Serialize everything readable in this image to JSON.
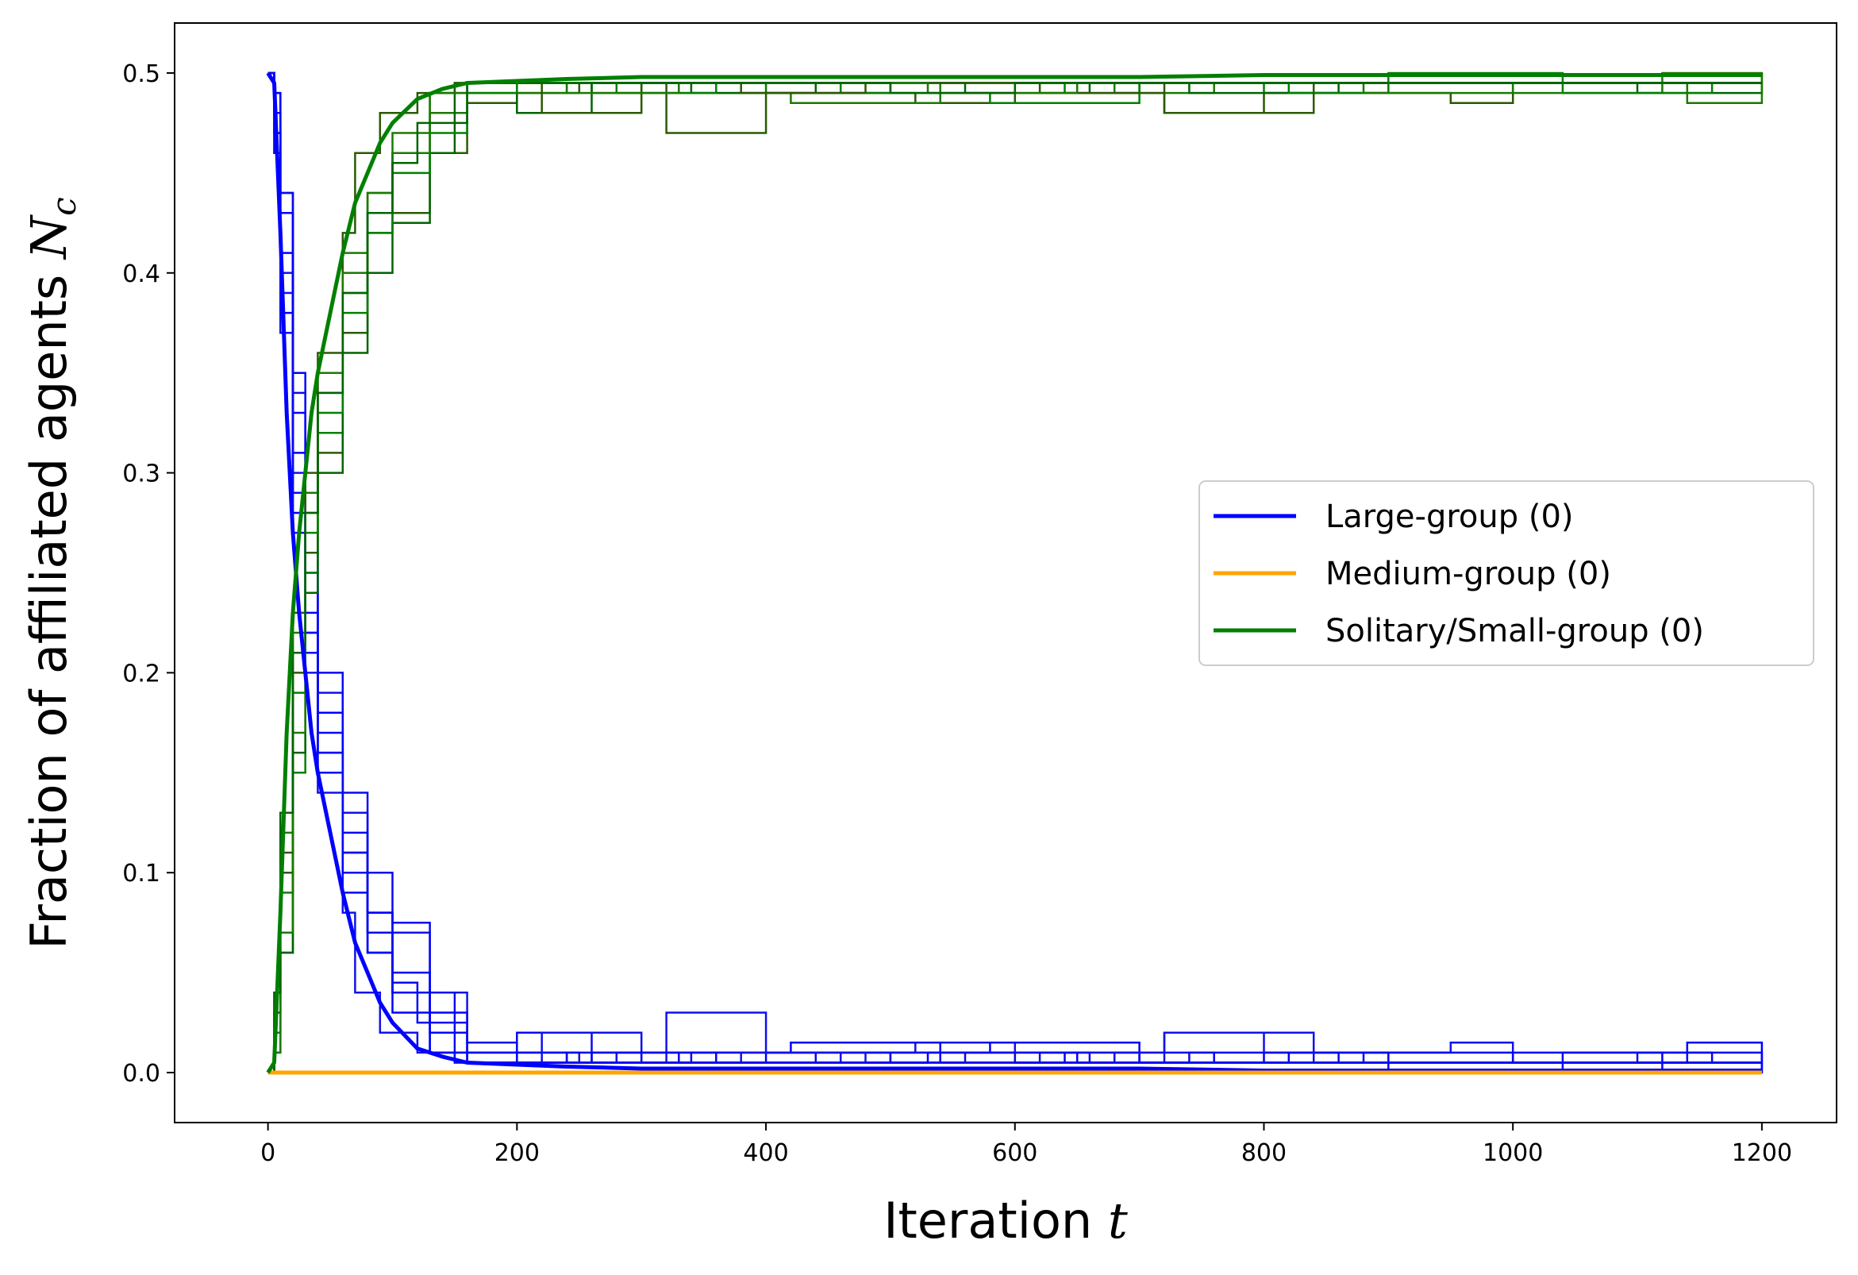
{
  "chart_data": {
    "type": "line",
    "xlabel": {
      "text": "Iteration ",
      "var": "t"
    },
    "ylabel": {
      "text": "Fraction of affiliated agents ",
      "var": "N",
      "sub": "c"
    },
    "xlim": [
      -75,
      1260
    ],
    "ylim": [
      -0.025,
      0.525
    ],
    "xticks": [
      0,
      200,
      400,
      600,
      800,
      1000,
      1200
    ],
    "xtick_labels": [
      "0",
      "200",
      "400",
      "600",
      "800",
      "1000",
      "1200"
    ],
    "yticks": [
      0.0,
      0.1,
      0.2,
      0.3,
      0.4,
      0.5
    ],
    "ytick_labels": [
      "0.0",
      "0.1",
      "0.2",
      "0.3",
      "0.4",
      "0.5"
    ],
    "grid": false,
    "legend": {
      "placement": "center-right",
      "entries": [
        {
          "label": "Large-group (0)",
          "color": "#0000ff"
        },
        {
          "label": "Medium-group (0)",
          "color": "#ffa500"
        },
        {
          "label": "Solitary/Small-group (0)",
          "color": "#008000"
        }
      ]
    },
    "series_groups": [
      {
        "name": "Large-group (0)",
        "color": "#0000ff",
        "mean": {
          "x": [
            0,
            5,
            10,
            15,
            20,
            25,
            30,
            35,
            40,
            50,
            60,
            70,
            80,
            90,
            100,
            120,
            140,
            160,
            200,
            240,
            300,
            400,
            500,
            600,
            700,
            800,
            900,
            1000,
            1100,
            1200
          ],
          "y": [
            0.5,
            0.495,
            0.42,
            0.33,
            0.27,
            0.23,
            0.2,
            0.17,
            0.15,
            0.12,
            0.09,
            0.065,
            0.05,
            0.035,
            0.025,
            0.012,
            0.008,
            0.005,
            0.004,
            0.003,
            0.002,
            0.002,
            0.002,
            0.002,
            0.002,
            0.001,
            0.001,
            0.001,
            0.001,
            0.001
          ]
        },
        "runs": [
          {
            "x": [
              0,
              5,
              10,
              20,
              30,
              40,
              60,
              80,
              100,
              130,
              160,
              200,
              260,
              300,
              400,
              500,
              640,
              700,
              800,
              900,
              1000,
              1200
            ],
            "y": [
              0.5,
              0.48,
              0.44,
              0.35,
              0.25,
              0.18,
              0.11,
              0.06,
              0.04,
              0.01,
              0.005,
              0.005,
              0.01,
              0.005,
              0.01,
              0.005,
              0.01,
              0.005,
              0.01,
              0.005,
              0.005,
              0.005
            ]
          },
          {
            "x": [
              0,
              5,
              10,
              20,
              30,
              40,
              60,
              80,
              100,
              130,
              160,
              200,
              250,
              320,
              400,
              520,
              600,
              720,
              800,
              950,
              1000,
              1200
            ],
            "y": [
              0.5,
              0.47,
              0.4,
              0.3,
              0.24,
              0.19,
              0.13,
              0.08,
              0.07,
              0.04,
              0.015,
              0.01,
              0.005,
              0.03,
              0.01,
              0.015,
              0.005,
              0.02,
              0.01,
              0.015,
              0.005,
              0.0
            ]
          },
          {
            "x": [
              0,
              5,
              10,
              20,
              30,
              40,
              60,
              80,
              100,
              130,
              160,
              200,
              240,
              300,
              420,
              540,
              680,
              760,
              880,
              1000,
              1120,
              1200
            ],
            "y": [
              0.5,
              0.46,
              0.38,
              0.28,
              0.21,
              0.15,
              0.09,
              0.06,
              0.03,
              0.02,
              0.01,
              0.01,
              0.005,
              0.01,
              0.015,
              0.005,
              0.01,
              0.005,
              0.005,
              0.01,
              0.0,
              0.005
            ]
          },
          {
            "x": [
              0,
              5,
              10,
              20,
              30,
              40,
              60,
              80,
              100,
              130,
              150,
              200,
              260,
              340,
              440,
              560,
              660,
              740,
              860,
              960,
              1100,
              1200
            ],
            "y": [
              0.5,
              0.49,
              0.44,
              0.34,
              0.26,
              0.2,
              0.14,
              0.1,
              0.075,
              0.04,
              0.005,
              0.02,
              0.005,
              0.01,
              0.005,
              0.01,
              0.005,
              0.01,
              0.005,
              0.005,
              0.01,
              0.005
            ]
          },
          {
            "x": [
              0,
              5,
              10,
              20,
              30,
              40,
              60,
              80,
              100,
              130,
              160,
              200,
              280,
              360,
              460,
              580,
              700,
              820,
              900,
              1040,
              1160,
              1200
            ],
            "y": [
              0.5,
              0.48,
              0.41,
              0.31,
              0.23,
              0.17,
              0.12,
              0.08,
              0.05,
              0.03,
              0.01,
              0.005,
              0.01,
              0.005,
              0.01,
              0.015,
              0.005,
              0.01,
              0.0,
              0.01,
              0.005,
              0.005
            ]
          },
          {
            "x": [
              0,
              5,
              10,
              20,
              30,
              40,
              60,
              70,
              90,
              120,
              150,
              180,
              220,
              300,
              380,
              480,
              620,
              720,
              840,
              940,
              1060,
              1200
            ],
            "y": [
              0.5,
              0.47,
              0.39,
              0.27,
              0.2,
              0.14,
              0.08,
              0.04,
              0.02,
              0.01,
              0.005,
              0.005,
              0.02,
              0.005,
              0.01,
              0.005,
              0.01,
              0.02,
              0.005,
              0.005,
              0.005,
              0.005
            ]
          },
          {
            "x": [
              0,
              5,
              10,
              20,
              30,
              40,
              60,
              80,
              100,
              130,
              160,
              200,
              240,
              330,
              430,
              530,
              650,
              780,
              880,
              1000,
              1140,
              1200
            ],
            "y": [
              0.5,
              0.49,
              0.43,
              0.33,
              0.22,
              0.16,
              0.1,
              0.07,
              0.04,
              0.01,
              0.005,
              0.005,
              0.01,
              0.005,
              0.005,
              0.01,
              0.005,
              0.005,
              0.01,
              0.005,
              0.015,
              0.005
            ]
          },
          {
            "x": [
              0,
              5,
              10,
              20,
              30,
              40,
              60,
              80,
              100,
              120,
              160,
              220,
              300,
              400,
              500,
              600,
              700,
              800,
              900,
              1000,
              1100,
              1200
            ],
            "y": [
              0.5,
              0.46,
              0.37,
              0.29,
              0.22,
              0.16,
              0.11,
              0.07,
              0.045,
              0.025,
              0.005,
              0.005,
              0.005,
              0.005,
              0.01,
              0.005,
              0.005,
              0.005,
              0.005,
              0.005,
              0.005,
              0.005
            ]
          }
        ]
      },
      {
        "name": "Medium-group (0)",
        "color": "#ffa500",
        "mean": {
          "x": [
            0,
            1200
          ],
          "y": [
            0.0,
            0.0
          ]
        },
        "runs": []
      },
      {
        "name": "Solitary/Small-group (0)",
        "color": "#008000",
        "mean": {
          "x": [
            0,
            5,
            10,
            15,
            20,
            25,
            30,
            35,
            40,
            50,
            60,
            70,
            80,
            90,
            100,
            120,
            140,
            160,
            200,
            240,
            300,
            400,
            500,
            600,
            700,
            800,
            900,
            1000,
            1100,
            1200
          ],
          "y": [
            0.0,
            0.005,
            0.08,
            0.17,
            0.23,
            0.27,
            0.3,
            0.33,
            0.35,
            0.38,
            0.41,
            0.435,
            0.45,
            0.465,
            0.475,
            0.487,
            0.492,
            0.495,
            0.496,
            0.497,
            0.498,
            0.498,
            0.498,
            0.498,
            0.498,
            0.499,
            0.499,
            0.499,
            0.499,
            0.499
          ]
        },
        "runs": [
          {
            "x": [
              0,
              5,
              10,
              20,
              30,
              40,
              60,
              80,
              100,
              130,
              160,
              200,
              260,
              300,
              400,
              500,
              640,
              700,
              800,
              900,
              1000,
              1200
            ],
            "y": [
              0.0,
              0.02,
              0.06,
              0.15,
              0.25,
              0.32,
              0.39,
              0.44,
              0.46,
              0.49,
              0.495,
              0.495,
              0.49,
              0.495,
              0.49,
              0.495,
              0.49,
              0.495,
              0.49,
              0.495,
              0.495,
              0.495
            ]
          },
          {
            "x": [
              0,
              5,
              10,
              20,
              30,
              40,
              60,
              80,
              100,
              130,
              160,
              200,
              250,
              320,
              400,
              520,
              600,
              720,
              800,
              950,
              1000,
              1200
            ],
            "y": [
              0.0,
              0.03,
              0.1,
              0.2,
              0.26,
              0.31,
              0.37,
              0.42,
              0.43,
              0.46,
              0.485,
              0.49,
              0.495,
              0.47,
              0.49,
              0.485,
              0.495,
              0.48,
              0.49,
              0.485,
              0.495,
              0.5
            ]
          },
          {
            "x": [
              0,
              5,
              10,
              20,
              30,
              40,
              60,
              80,
              100,
              130,
              160,
              200,
              240,
              300,
              420,
              540,
              680,
              760,
              880,
              1000,
              1120,
              1200
            ],
            "y": [
              0.0,
              0.04,
              0.12,
              0.22,
              0.29,
              0.35,
              0.41,
              0.44,
              0.47,
              0.48,
              0.49,
              0.49,
              0.495,
              0.49,
              0.485,
              0.495,
              0.49,
              0.495,
              0.495,
              0.49,
              0.5,
              0.495
            ]
          },
          {
            "x": [
              0,
              5,
              10,
              20,
              30,
              40,
              60,
              80,
              100,
              130,
              150,
              200,
              260,
              340,
              440,
              560,
              660,
              740,
              860,
              960,
              1100,
              1200
            ],
            "y": [
              0.0,
              0.01,
              0.06,
              0.16,
              0.24,
              0.3,
              0.36,
              0.4,
              0.425,
              0.46,
              0.495,
              0.48,
              0.495,
              0.49,
              0.495,
              0.49,
              0.495,
              0.49,
              0.495,
              0.495,
              0.49,
              0.495
            ]
          },
          {
            "x": [
              0,
              5,
              10,
              20,
              30,
              40,
              60,
              80,
              100,
              130,
              160,
              200,
              280,
              360,
              460,
              580,
              700,
              820,
              900,
              1040,
              1160,
              1200
            ],
            "y": [
              0.0,
              0.02,
              0.09,
              0.19,
              0.27,
              0.33,
              0.38,
              0.42,
              0.45,
              0.47,
              0.49,
              0.495,
              0.49,
              0.495,
              0.49,
              0.485,
              0.495,
              0.49,
              0.5,
              0.49,
              0.495,
              0.495
            ]
          },
          {
            "x": [
              0,
              5,
              10,
              20,
              30,
              40,
              60,
              70,
              90,
              120,
              150,
              180,
              220,
              300,
              380,
              480,
              620,
              720,
              840,
              940,
              1060,
              1200
            ],
            "y": [
              0.0,
              0.03,
              0.11,
              0.23,
              0.3,
              0.36,
              0.42,
              0.46,
              0.48,
              0.49,
              0.495,
              0.495,
              0.48,
              0.495,
              0.49,
              0.495,
              0.49,
              0.48,
              0.495,
              0.495,
              0.495,
              0.495
            ]
          },
          {
            "x": [
              0,
              5,
              10,
              20,
              30,
              40,
              60,
              80,
              100,
              130,
              160,
              200,
              240,
              330,
              430,
              530,
              650,
              780,
              880,
              1000,
              1140,
              1200
            ],
            "y": [
              0.0,
              0.01,
              0.07,
              0.17,
              0.28,
              0.34,
              0.4,
              0.43,
              0.46,
              0.49,
              0.495,
              0.495,
              0.49,
              0.495,
              0.495,
              0.49,
              0.495,
              0.495,
              0.49,
              0.495,
              0.485,
              0.495
            ]
          },
          {
            "x": [
              0,
              5,
              10,
              20,
              30,
              40,
              60,
              80,
              100,
              120,
              160,
              220,
              300,
              400,
              500,
              600,
              700,
              800,
              900,
              1000,
              1100,
              1200
            ],
            "y": [
              0.0,
              0.04,
              0.13,
              0.21,
              0.28,
              0.34,
              0.39,
              0.43,
              0.455,
              0.475,
              0.495,
              0.495,
              0.495,
              0.495,
              0.49,
              0.495,
              0.495,
              0.495,
              0.495,
              0.495,
              0.495,
              0.495
            ]
          }
        ]
      }
    ]
  }
}
